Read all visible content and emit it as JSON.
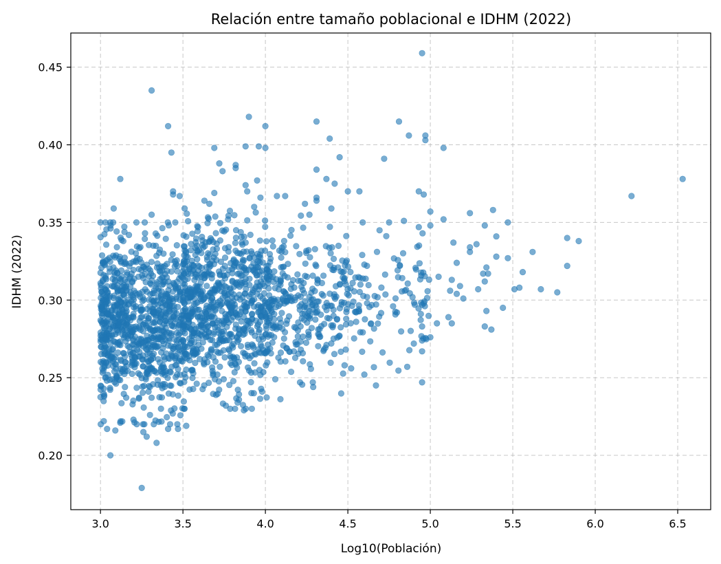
{
  "chart_data": {
    "type": "scatter",
    "title": "Relación entre tamaño poblacional e IDHM (2022)",
    "xlabel": "Log10(Población)",
    "ylabel": "IDHM (2022)",
    "xlim": [
      2.82,
      6.7
    ],
    "ylim": [
      0.165,
      0.472
    ],
    "xticks": [
      3.0,
      3.5,
      4.0,
      4.5,
      5.0,
      5.5,
      6.0,
      6.5
    ],
    "xtick_labels": [
      "3.0",
      "3.5",
      "4.0",
      "4.5",
      "5.0",
      "5.5",
      "6.0",
      "6.5"
    ],
    "yticks": [
      0.2,
      0.25,
      0.3,
      0.35,
      0.4,
      0.45
    ],
    "ytick_labels": [
      "0.20",
      "0.25",
      "0.30",
      "0.35",
      "0.40",
      "0.45"
    ],
    "grid": true,
    "color": "#1f77b4",
    "series": [
      {
        "points": [
          [
            4.95,
            0.459
          ],
          [
            3.31,
            0.435
          ],
          [
            3.9,
            0.418
          ],
          [
            4.31,
            0.415
          ],
          [
            4.81,
            0.415
          ],
          [
            3.41,
            0.412
          ],
          [
            4.0,
            0.412
          ],
          [
            4.97,
            0.406
          ],
          [
            4.87,
            0.406
          ],
          [
            4.97,
            0.403
          ],
          [
            4.39,
            0.404
          ],
          [
            3.96,
            0.399
          ],
          [
            4.0,
            0.398
          ],
          [
            3.88,
            0.399
          ],
          [
            5.08,
            0.398
          ],
          [
            3.69,
            0.398
          ],
          [
            4.45,
            0.392
          ],
          [
            4.72,
            0.391
          ],
          [
            3.43,
            0.395
          ],
          [
            3.72,
            0.388
          ],
          [
            3.82,
            0.387
          ],
          [
            3.82,
            0.385
          ],
          [
            3.74,
            0.383
          ],
          [
            4.31,
            0.384
          ],
          [
            4.37,
            0.378
          ],
          [
            4.42,
            0.375
          ],
          [
            3.12,
            0.378
          ],
          [
            3.95,
            0.377
          ],
          [
            3.88,
            0.374
          ],
          [
            3.89,
            0.37
          ],
          [
            4.5,
            0.37
          ],
          [
            4.57,
            0.37
          ],
          [
            4.93,
            0.37
          ],
          [
            4.96,
            0.368
          ],
          [
            3.44,
            0.37
          ],
          [
            3.44,
            0.368
          ],
          [
            3.69,
            0.369
          ],
          [
            3.48,
            0.367
          ],
          [
            3.97,
            0.366
          ],
          [
            4.07,
            0.367
          ],
          [
            4.12,
            0.367
          ],
          [
            4.31,
            0.366
          ],
          [
            4.31,
            0.364
          ],
          [
            3.63,
            0.364
          ],
          [
            3.66,
            0.362
          ],
          [
            4.24,
            0.362
          ],
          [
            3.51,
            0.359
          ],
          [
            3.08,
            0.359
          ],
          [
            3.31,
            0.355
          ],
          [
            4.4,
            0.359
          ],
          [
            5.0,
            0.357
          ],
          [
            5.38,
            0.358
          ],
          [
            6.53,
            0.378
          ],
          [
            6.22,
            0.367
          ],
          [
            5.24,
            0.356
          ],
          [
            5.08,
            0.352
          ],
          [
            4.84,
            0.351
          ],
          [
            4.59,
            0.35
          ],
          [
            4.75,
            0.35
          ],
          [
            5.47,
            0.35
          ],
          [
            5.33,
            0.348
          ],
          [
            4.93,
            0.347
          ],
          [
            5.0,
            0.348
          ],
          [
            5.83,
            0.34
          ],
          [
            5.9,
            0.338
          ],
          [
            5.4,
            0.341
          ],
          [
            5.14,
            0.337
          ],
          [
            5.28,
            0.336
          ],
          [
            5.24,
            0.334
          ],
          [
            5.62,
            0.331
          ],
          [
            5.24,
            0.331
          ],
          [
            5.4,
            0.328
          ],
          [
            5.47,
            0.327
          ],
          [
            5.16,
            0.324
          ],
          [
            5.83,
            0.322
          ],
          [
            5.34,
            0.321
          ],
          [
            5.35,
            0.317
          ],
          [
            5.56,
            0.318
          ],
          [
            5.32,
            0.317
          ],
          [
            5.13,
            0.313
          ],
          [
            5.05,
            0.315
          ],
          [
            5.33,
            0.312
          ],
          [
            5.51,
            0.307
          ],
          [
            5.54,
            0.308
          ],
          [
            5.67,
            0.307
          ],
          [
            5.77,
            0.305
          ],
          [
            5.18,
            0.309
          ],
          [
            5.12,
            0.306
          ],
          [
            5.16,
            0.304
          ],
          [
            5.2,
            0.301
          ],
          [
            5.29,
            0.307
          ],
          [
            5.44,
            0.295
          ],
          [
            5.34,
            0.293
          ],
          [
            5.11,
            0.289
          ],
          [
            5.33,
            0.283
          ],
          [
            5.37,
            0.281
          ],
          [
            5.04,
            0.285
          ],
          [
            5.13,
            0.285
          ],
          [
            4.95,
            0.297
          ],
          [
            4.95,
            0.283
          ],
          [
            5.0,
            0.276
          ],
          [
            4.95,
            0.274
          ],
          [
            4.9,
            0.272
          ],
          [
            4.95,
            0.267
          ],
          [
            4.86,
            0.257
          ],
          [
            4.95,
            0.247
          ],
          [
            4.6,
            0.252
          ],
          [
            4.52,
            0.256
          ],
          [
            4.48,
            0.258
          ],
          [
            3.06,
            0.2
          ],
          [
            3.25,
            0.179
          ],
          [
            3.34,
            0.208
          ],
          [
            3.28,
            0.212
          ],
          [
            3.47,
            0.217
          ],
          [
            3.41,
            0.217
          ],
          [
            3.04,
            0.217
          ],
          [
            3.52,
            0.219
          ],
          [
            3.09,
            0.216
          ],
          [
            3.87,
            0.229
          ],
          [
            3.76,
            0.232
          ],
          [
            3.98,
            0.241
          ],
          [
            4.29,
            0.244
          ],
          [
            4.21,
            0.247
          ],
          [
            4.06,
            0.249
          ],
          [
            3.93,
            0.24
          ],
          [
            3.02,
            0.222
          ],
          [
            3.26,
            0.215
          ],
          [
            3.12,
            0.221
          ],
          [
            3.2,
            0.223
          ],
          [
            3.3,
            0.226
          ]
        ],
        "dense_cluster": {
          "description_note": "",
          "bands": [
            {
              "x_range": [
                3.0,
                3.5
              ],
              "y_range": [
                0.23,
                0.34
              ],
              "n": 900
            },
            {
              "x_range": [
                3.5,
                4.0
              ],
              "y_range": [
                0.24,
                0.35
              ],
              "n": 750
            },
            {
              "x_range": [
                4.0,
                4.5
              ],
              "y_range": [
                0.245,
                0.345
              ],
              "n": 330
            },
            {
              "x_range": [
                4.5,
                5.0
              ],
              "y_range": [
                0.255,
                0.335
              ],
              "n": 110
            }
          ]
        }
      }
    ]
  }
}
